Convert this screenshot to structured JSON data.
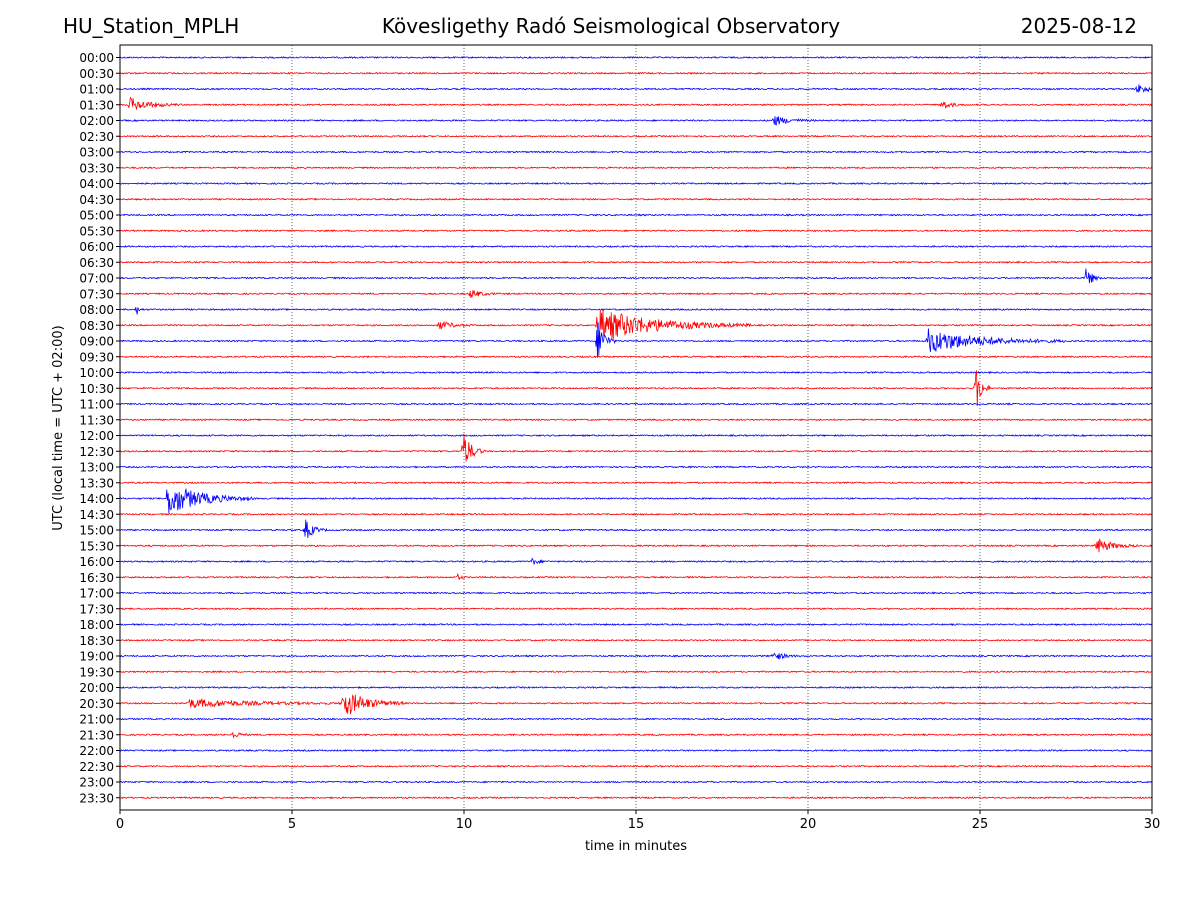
{
  "header": {
    "station": "HU_Station_MPLH",
    "observatory": "Kövesligethy Radó Seismological Observatory",
    "date": "2025-08-12"
  },
  "chart_data": {
    "type": "line",
    "title": "Kövesligethy Radó Seismological Observatory",
    "xlabel": "time in minutes",
    "ylabel": "UTC (local time = UTC + 02:00)",
    "xlim": [
      0,
      30
    ],
    "x_ticks": [
      0,
      5,
      10,
      15,
      20,
      25,
      30
    ],
    "grid": "vertical dotted at x ticks",
    "trace_colors": [
      "#0000ff",
      "#ff0000"
    ],
    "rows": [
      "00:00",
      "00:30",
      "01:00",
      "01:30",
      "02:00",
      "02:30",
      "03:00",
      "03:30",
      "04:00",
      "04:30",
      "05:00",
      "05:30",
      "06:00",
      "06:30",
      "07:00",
      "07:30",
      "08:00",
      "08:30",
      "09:00",
      "09:30",
      "10:00",
      "10:30",
      "11:00",
      "11:30",
      "12:00",
      "12:30",
      "13:00",
      "13:30",
      "14:00",
      "14:30",
      "15:00",
      "15:30",
      "16:00",
      "16:30",
      "17:00",
      "17:30",
      "18:00",
      "18:30",
      "19:00",
      "19:30",
      "20:00",
      "20:30",
      "21:00",
      "21:30",
      "22:00",
      "22:30",
      "23:00",
      "23:30"
    ],
    "events": [
      {
        "row": "01:00",
        "minute": 29.6,
        "amplitude": 0.6,
        "duration": 0.8
      },
      {
        "row": "01:30",
        "minute": 0.3,
        "amplitude": 0.8,
        "duration": 1.5
      },
      {
        "row": "01:30",
        "minute": 23.9,
        "amplitude": 0.5,
        "duration": 0.7
      },
      {
        "row": "02:00",
        "minute": 19.0,
        "amplitude": 0.6,
        "duration": 1.2
      },
      {
        "row": "07:00",
        "minute": 28.1,
        "amplitude": 1.4,
        "duration": 0.4
      },
      {
        "row": "07:30",
        "minute": 10.2,
        "amplitude": 0.5,
        "duration": 0.8
      },
      {
        "row": "08:00",
        "minute": 0.5,
        "amplitude": 0.5,
        "duration": 0.2
      },
      {
        "row": "08:30",
        "minute": 9.3,
        "amplitude": 0.5,
        "duration": 1.0
      },
      {
        "row": "08:30",
        "minute": 13.9,
        "amplitude": 2.0,
        "duration": 4.5
      },
      {
        "row": "09:00",
        "minute": 13.9,
        "amplitude": 2.6,
        "duration": 0.5
      },
      {
        "row": "09:00",
        "minute": 23.5,
        "amplitude": 1.4,
        "duration": 4.0
      },
      {
        "row": "10:30",
        "minute": 24.9,
        "amplitude": 2.6,
        "duration": 0.4
      },
      {
        "row": "12:30",
        "minute": 10.0,
        "amplitude": 2.2,
        "duration": 0.6
      },
      {
        "row": "14:00",
        "minute": 1.4,
        "amplitude": 2.0,
        "duration": 2.5
      },
      {
        "row": "15:00",
        "minute": 5.4,
        "amplitude": 1.2,
        "duration": 0.6
      },
      {
        "row": "15:30",
        "minute": 28.4,
        "amplitude": 0.9,
        "duration": 1.2
      },
      {
        "row": "16:00",
        "minute": 12.0,
        "amplitude": 0.4,
        "duration": 0.5
      },
      {
        "row": "16:30",
        "minute": 9.8,
        "amplitude": 0.4,
        "duration": 0.3
      },
      {
        "row": "19:00",
        "minute": 19.0,
        "amplitude": 0.5,
        "duration": 0.8
      },
      {
        "row": "20:30",
        "minute": 2.0,
        "amplitude": 0.5,
        "duration": 5.0
      },
      {
        "row": "20:30",
        "minute": 6.5,
        "amplitude": 1.6,
        "duration": 1.8
      },
      {
        "row": "21:30",
        "minute": 3.3,
        "amplitude": 0.4,
        "duration": 0.5
      }
    ]
  }
}
